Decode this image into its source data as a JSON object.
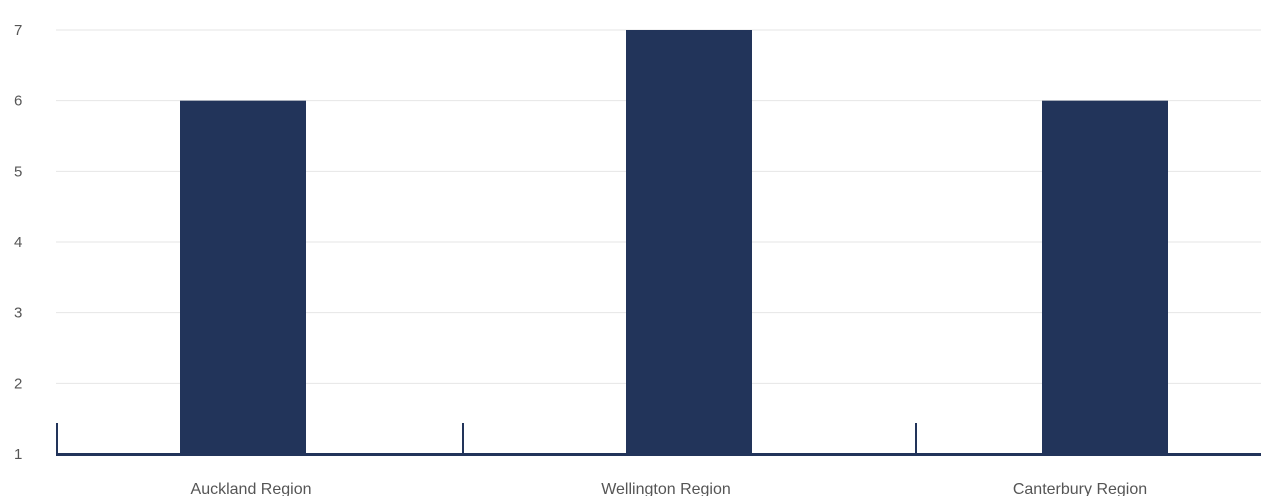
{
  "chart_data": {
    "type": "bar",
    "title": "",
    "xlabel": "",
    "ylabel": "",
    "categories": [
      "Auckland Region",
      "Wellington Region",
      "Canterbury Region"
    ],
    "values": [
      6,
      7,
      6
    ],
    "ylim": [
      1,
      7
    ],
    "yticks": [
      "1",
      "2",
      "3",
      "4",
      "5",
      "6",
      "7"
    ],
    "grid": true,
    "colors": {
      "bar": "#22345a",
      "axis": "#22345a",
      "grid": "#e6e6e6",
      "text": "#555555"
    }
  }
}
